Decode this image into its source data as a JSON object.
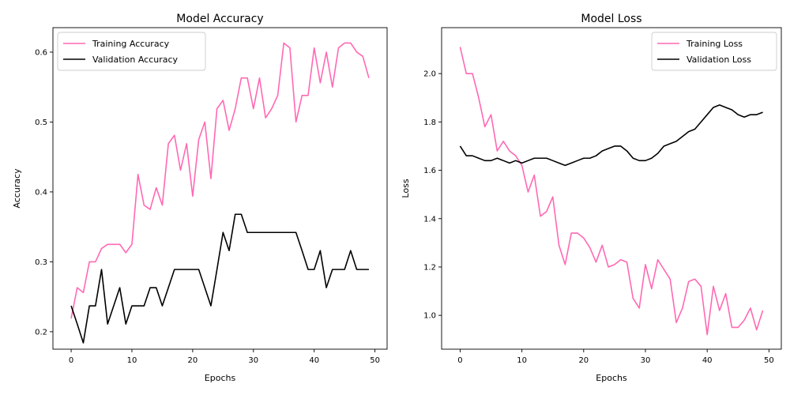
{
  "chart_data": [
    {
      "type": "line",
      "title": "Model Accuracy",
      "xlabel": "Epochs",
      "ylabel": "Accuracy",
      "xlim": [
        -3,
        52
      ],
      "ylim": [
        0.175,
        0.635
      ],
      "xticks": [
        0,
        10,
        20,
        30,
        40,
        50
      ],
      "yticks": [
        0.2,
        0.3,
        0.4,
        0.5,
        0.6
      ],
      "xtick_labels": [
        "0",
        "10",
        "20",
        "30",
        "40",
        "50"
      ],
      "ytick_labels": [
        "0.2",
        "0.3",
        "0.4",
        "0.5",
        "0.6"
      ],
      "grid": false,
      "legend": "top-left",
      "x": [
        0,
        1,
        2,
        3,
        4,
        5,
        6,
        7,
        8,
        9,
        10,
        11,
        12,
        13,
        14,
        15,
        16,
        17,
        18,
        19,
        20,
        21,
        22,
        23,
        24,
        25,
        26,
        27,
        28,
        29,
        30,
        31,
        32,
        33,
        34,
        35,
        36,
        37,
        38,
        39,
        40,
        41,
        42,
        43,
        44,
        45,
        46,
        47,
        48,
        49
      ],
      "series": [
        {
          "name": "Training Accuracy",
          "color": "#ff69b4",
          "values": [
            0.219,
            0.263,
            0.256,
            0.3,
            0.3,
            0.319,
            0.325,
            0.325,
            0.325,
            0.313,
            0.325,
            0.425,
            0.381,
            0.375,
            0.406,
            0.381,
            0.469,
            0.481,
            0.431,
            0.469,
            0.394,
            0.475,
            0.5,
            0.419,
            0.519,
            0.531,
            0.488,
            0.519,
            0.563,
            0.563,
            0.519,
            0.563,
            0.506,
            0.519,
            0.538,
            0.613,
            0.606,
            0.5,
            0.538,
            0.538,
            0.606,
            0.556,
            0.6,
            0.55,
            0.606,
            0.613,
            0.613,
            0.6,
            0.594,
            0.563
          ]
        },
        {
          "name": "Validation Accuracy",
          "color": "#000000",
          "values": [
            0.237,
            0.211,
            0.184,
            0.237,
            0.237,
            0.289,
            0.211,
            0.237,
            0.263,
            0.211,
            0.237,
            0.237,
            0.237,
            0.263,
            0.263,
            0.237,
            0.263,
            0.289,
            0.289,
            0.289,
            0.289,
            0.289,
            0.263,
            0.237,
            0.289,
            0.342,
            0.316,
            0.368,
            0.368,
            0.342,
            0.342,
            0.342,
            0.342,
            0.342,
            0.342,
            0.342,
            0.342,
            0.342,
            0.316,
            0.289,
            0.289,
            0.316,
            0.263,
            0.289,
            0.289,
            0.289,
            0.316,
            0.289,
            0.289,
            0.289
          ]
        }
      ]
    },
    {
      "type": "line",
      "title": "Model Loss",
      "xlabel": "Epochs",
      "ylabel": "Loss",
      "xlim": [
        -3,
        52
      ],
      "ylim": [
        0.86,
        2.19
      ],
      "xticks": [
        0,
        10,
        20,
        30,
        40,
        50
      ],
      "yticks": [
        1.0,
        1.2,
        1.4,
        1.6,
        1.8,
        2.0
      ],
      "xtick_labels": [
        "0",
        "10",
        "20",
        "30",
        "40",
        "50"
      ],
      "ytick_labels": [
        "1.0",
        "1.2",
        "1.4",
        "1.6",
        "1.8",
        "2.0"
      ],
      "grid": false,
      "legend": "top-right",
      "x": [
        0,
        1,
        2,
        3,
        4,
        5,
        6,
        7,
        8,
        9,
        10,
        11,
        12,
        13,
        14,
        15,
        16,
        17,
        18,
        19,
        20,
        21,
        22,
        23,
        24,
        25,
        26,
        27,
        28,
        29,
        30,
        31,
        32,
        33,
        34,
        35,
        36,
        37,
        38,
        39,
        40,
        41,
        42,
        43,
        44,
        45,
        46,
        47,
        48,
        49
      ],
      "series": [
        {
          "name": "Training Loss",
          "color": "#ff69b4",
          "values": [
            2.11,
            2.0,
            2.0,
            1.9,
            1.78,
            1.83,
            1.68,
            1.72,
            1.68,
            1.66,
            1.62,
            1.51,
            1.58,
            1.41,
            1.43,
            1.49,
            1.29,
            1.21,
            1.34,
            1.34,
            1.32,
            1.28,
            1.22,
            1.29,
            1.2,
            1.21,
            1.23,
            1.22,
            1.07,
            1.03,
            1.21,
            1.11,
            1.23,
            1.19,
            1.15,
            0.97,
            1.03,
            1.14,
            1.15,
            1.12,
            0.92,
            1.12,
            1.02,
            1.09,
            0.95,
            0.95,
            0.98,
            1.03,
            0.94,
            1.02
          ]
        },
        {
          "name": "Validation Loss",
          "color": "#000000",
          "values": [
            1.7,
            1.66,
            1.66,
            1.65,
            1.64,
            1.64,
            1.65,
            1.64,
            1.63,
            1.64,
            1.63,
            1.64,
            1.65,
            1.65,
            1.65,
            1.64,
            1.63,
            1.62,
            1.63,
            1.64,
            1.65,
            1.65,
            1.66,
            1.68,
            1.69,
            1.7,
            1.7,
            1.68,
            1.65,
            1.64,
            1.64,
            1.65,
            1.67,
            1.7,
            1.71,
            1.72,
            1.74,
            1.76,
            1.77,
            1.8,
            1.83,
            1.86,
            1.87,
            1.86,
            1.85,
            1.83,
            1.82,
            1.83,
            1.83,
            1.84
          ]
        }
      ]
    }
  ]
}
